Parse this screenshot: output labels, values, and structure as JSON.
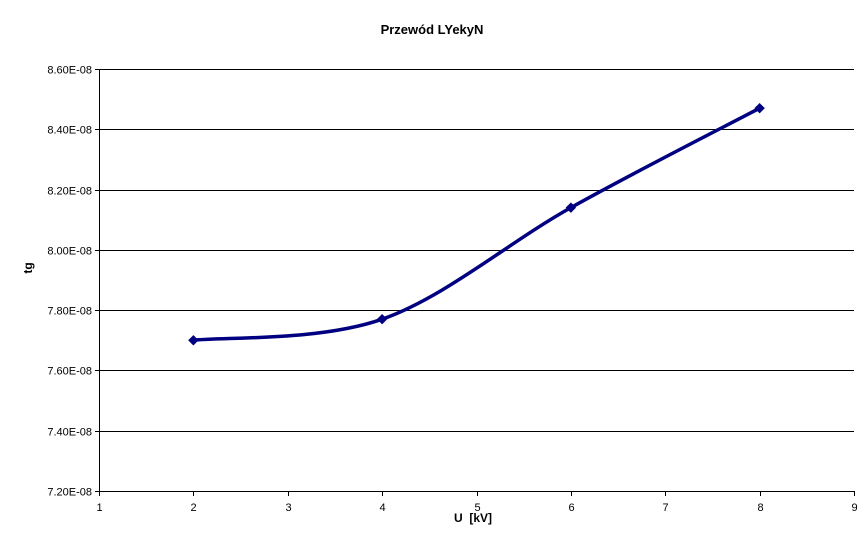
{
  "chart_data": {
    "type": "line",
    "title": "Przewód LYekyN",
    "xlabel": "U  [kV]",
    "ylabel": "tg",
    "x": [
      2,
      4,
      6,
      8
    ],
    "series": [
      {
        "values": [
          7.7e-08,
          7.77e-08,
          8.14e-08,
          8.47e-08
        ],
        "color": "#000080",
        "marker": "diamond",
        "smooth": true
      }
    ],
    "xlim": [
      1,
      9
    ],
    "ylim": [
      7.2e-08,
      8.6e-08
    ],
    "xticks": [
      1,
      2,
      3,
      4,
      5,
      6,
      7,
      8,
      9
    ],
    "xtick_labels": [
      "1",
      "2",
      "3",
      "4",
      "5",
      "6",
      "7",
      "8",
      "9"
    ],
    "yticks": [
      7.2e-08,
      7.4e-08,
      7.6e-08,
      7.8e-08,
      8e-08,
      8.2e-08,
      8.4e-08,
      8.6e-08
    ],
    "ytick_labels": [
      "7.20E-08",
      "7.40E-08",
      "7.60E-08",
      "7.80E-08",
      "8.00E-08",
      "8.20E-08",
      "8.40E-08",
      "8.60E-08"
    ],
    "grid": "horizontal",
    "legend": "none"
  }
}
